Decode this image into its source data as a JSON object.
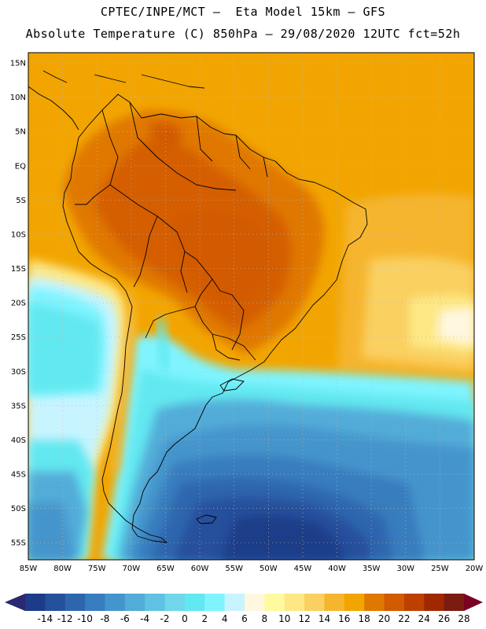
{
  "header": {
    "line1": "CPTEC/INPE/MCT –  Eta Model 15km – GFS",
    "line2": "Absolute Temperature (C) 850hPa – 29/08/2020 12UTC fct=52h"
  },
  "map": {
    "lat_ticks": [
      "15N",
      "10N",
      "5N",
      "EQ",
      "5S",
      "10S",
      "15S",
      "20S",
      "25S",
      "30S",
      "35S",
      "40S",
      "45S",
      "50S",
      "55S"
    ],
    "lon_ticks": [
      "85W",
      "80W",
      "75W",
      "70W",
      "65W",
      "60W",
      "55W",
      "50W",
      "45W",
      "40W",
      "35W",
      "30W",
      "25W",
      "20W"
    ],
    "lon_range": [
      -85,
      -20
    ],
    "lat_range": [
      -57.5,
      16.5
    ],
    "grid": "dotted"
  },
  "colorbar": {
    "labels": [
      "-14",
      "-12",
      "-10",
      "-8",
      "-6",
      "-4",
      "-2",
      "0",
      "2",
      "4",
      "6",
      "8",
      "10",
      "12",
      "14",
      "16",
      "18",
      "20",
      "22",
      "24",
      "26",
      "28"
    ],
    "colors": [
      "#1c3c88",
      "#25509c",
      "#2e66ae",
      "#387dbe",
      "#4495cc",
      "#52acd8",
      "#60c2e2",
      "#70d6ea",
      "#62e8f0",
      "#7ff4ff",
      "#c8f4ff",
      "#fff7e0",
      "#fffaa0",
      "#fde885",
      "#fad060",
      "#f6b52e",
      "#f2a500",
      "#e07800",
      "#d25a00",
      "#bd4000",
      "#9f2800",
      "#7a1c10"
    ],
    "low_arrow_color": "#2a2870",
    "high_arrow_color": "#7a0024"
  },
  "icons": {
    "left_arrow": "triangle-left-icon",
    "right_arrow": "triangle-right-icon"
  }
}
